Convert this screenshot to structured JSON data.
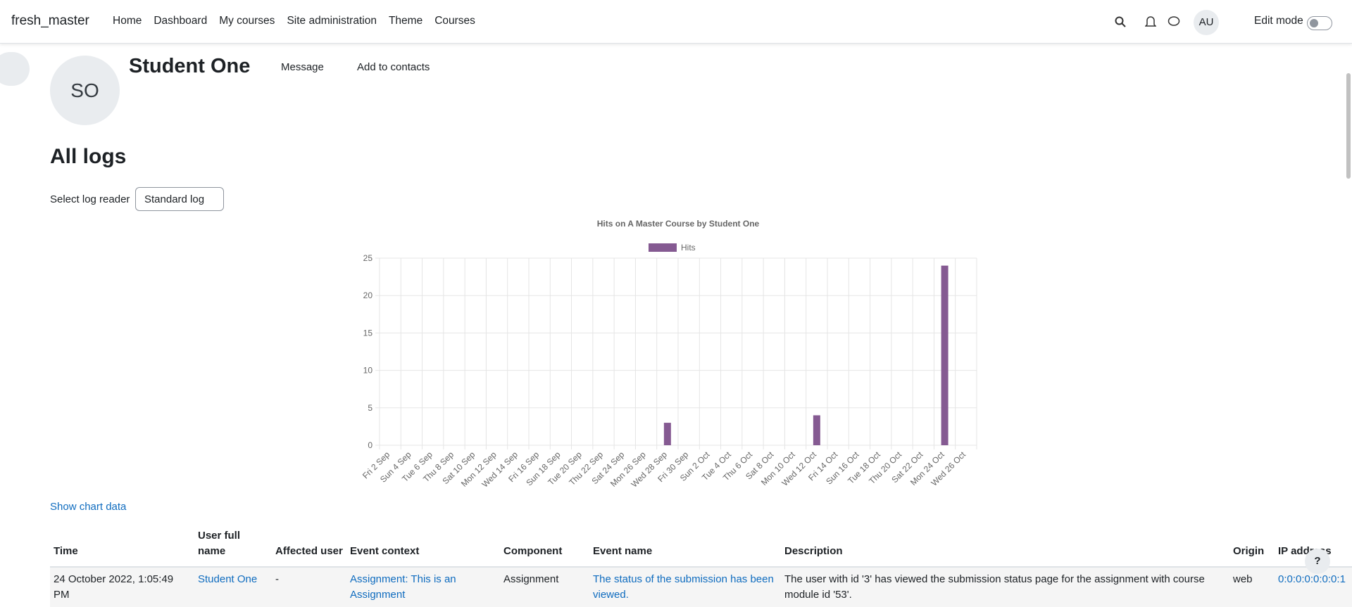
{
  "navbar": {
    "site": "fresh_master",
    "links": [
      "Home",
      "Dashboard",
      "My courses",
      "Site administration",
      "Theme",
      "Courses"
    ],
    "user_initials": "AU",
    "edit_mode": "Edit mode"
  },
  "profile": {
    "initials": "SO",
    "name": "Student One",
    "message": "Message",
    "add_contact": "Add to contacts"
  },
  "page": {
    "heading": "All logs",
    "reader_label": "Select log reader",
    "reader_value": "Standard log",
    "show_chart_data": "Show chart data",
    "help": "?"
  },
  "chart_data": {
    "type": "bar",
    "title": "Hits on A Master Course by Student One",
    "categories": [
      "Fri 2 Sep",
      "Sun 4 Sep",
      "Tue 6 Sep",
      "Thu 8 Sep",
      "Sat 10 Sep",
      "Mon 12 Sep",
      "Wed 14 Sep",
      "Fri 16 Sep",
      "Sun 18 Sep",
      "Tue 20 Sep",
      "Thu 22 Sep",
      "Sat 24 Sep",
      "Mon 26 Sep",
      "Wed 28 Sep",
      "Fri 30 Sep",
      "Sun 2 Oct",
      "Tue 4 Oct",
      "Thu 6 Oct",
      "Sat 8 Oct",
      "Mon 10 Oct",
      "Wed 12 Oct",
      "Fri 14 Oct",
      "Sun 16 Oct",
      "Tue 18 Oct",
      "Thu 20 Oct",
      "Sat 22 Oct",
      "Mon 24 Oct",
      "Wed 26 Oct"
    ],
    "series": [
      {
        "name": "Hits",
        "color": "#855a92",
        "values": [
          0,
          0,
          0,
          0,
          0,
          0,
          0,
          0,
          0,
          0,
          0,
          0,
          0,
          3,
          0,
          0,
          0,
          0,
          0,
          0,
          4,
          0,
          0,
          0,
          0,
          0,
          24,
          0
        ]
      }
    ],
    "ylim": [
      0,
      25
    ],
    "yticks": [
      0,
      5,
      10,
      15,
      20,
      25
    ],
    "grid": true,
    "legend": "top"
  },
  "table": {
    "headers": [
      "Time",
      "User full name",
      "Affected user",
      "Event context",
      "Component",
      "Event name",
      "Description",
      "Origin",
      "IP address"
    ],
    "rows": [
      [
        "24 October 2022, 1:05:49 PM",
        "Student One",
        "-",
        "Assignment: This is an Assignment",
        "Assignment",
        "The status of the submission has been viewed.",
        "The user with id '3' has viewed the submission status page for the assignment with course module id '53'.",
        "web",
        "0:0:0:0:0:0:0:1"
      ]
    ]
  }
}
